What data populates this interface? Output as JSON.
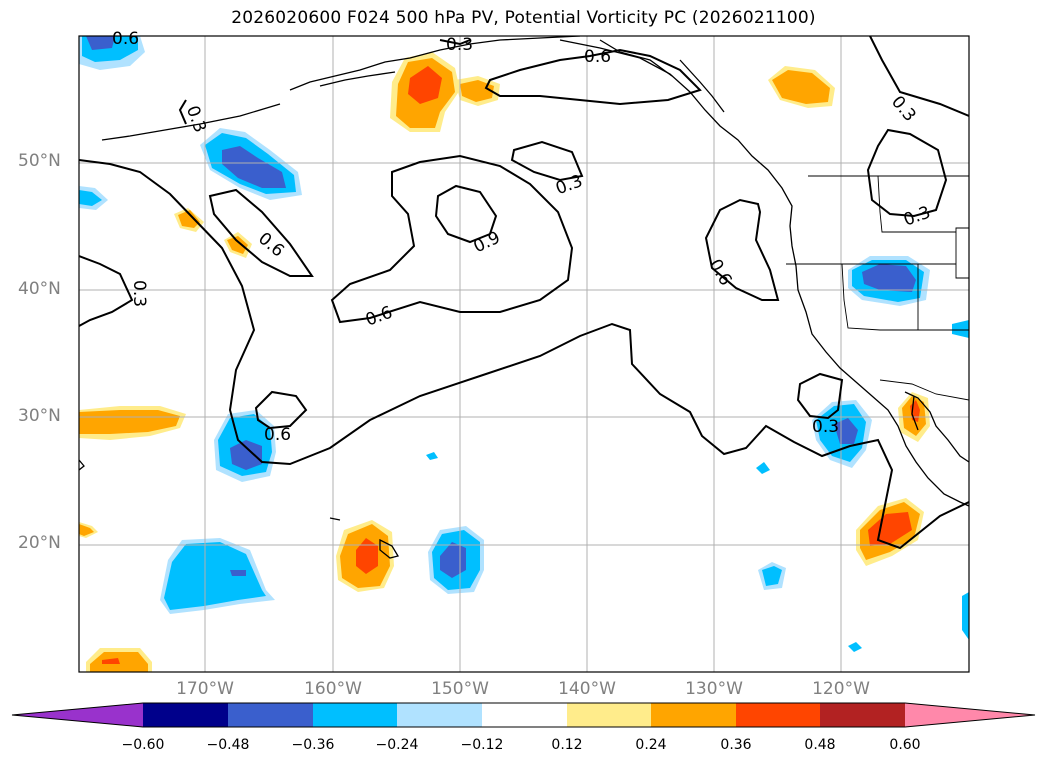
{
  "title": "2026020600 F024 500 hPa PV, Potential Vorticity PC (2026021100)",
  "map": {
    "projection": "latitude-longitude",
    "region": "North Pacific / western North America",
    "lat_labels": [
      "50°N",
      "40°N",
      "30°N",
      "20°N"
    ],
    "lon_labels": [
      "170°W",
      "160°W",
      "150°W",
      "140°W",
      "130°W",
      "120°W"
    ],
    "gridlines": true,
    "field": "500 hPa potential vorticity principal component",
    "contour_levels_labeled": [
      "0.3",
      "0.6",
      "0.9"
    ],
    "contour_labels": [
      "0.6",
      "0.3",
      "0.6",
      "0.3",
      "0.3",
      "0.6",
      "0.3",
      "0.9",
      "0.6",
      "0.3",
      "0.3",
      "0.6",
      "0.6",
      "0.3"
    ]
  },
  "colorbar": {
    "orientation": "horizontal",
    "extend": "both",
    "ticks": [
      "−0.60",
      "−0.48",
      "−0.36",
      "−0.24",
      "−0.12",
      "0.12",
      "0.24",
      "0.36",
      "0.48",
      "0.60"
    ],
    "colors": [
      "#9932cc",
      "#00008b",
      "#3a5fcd",
      "#00bfff",
      "#b0e2ff",
      "#ffffff",
      "#ffec8b",
      "#ffa500",
      "#ff4500",
      "#b22222",
      "#ff88aa"
    ]
  }
}
